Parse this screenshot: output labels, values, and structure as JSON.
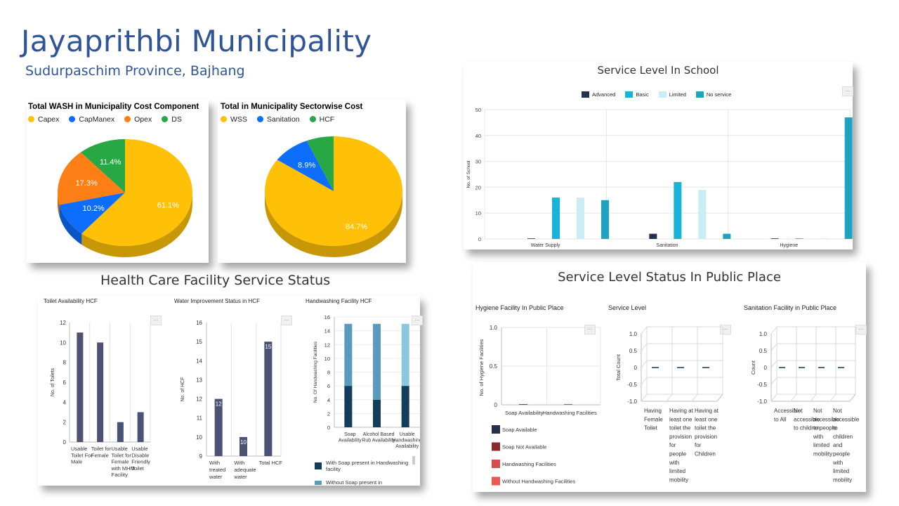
{
  "header": {
    "title": "Jayaprithbi Municipality",
    "subtitle": "Sudurpaschim Province, Bajhang"
  },
  "colors": {
    "capex": "#ffc107",
    "capmanex": "#0d6efd",
    "opex": "#fd7e14",
    "ds": "#28a745",
    "wss": "#ffc107",
    "sanitation": "#0d6efd",
    "hcf": "#28a745",
    "advanced": "#23314f",
    "basic": "#18b3d8",
    "limited": "#c9ecf5",
    "noservice": "#1fa3c2",
    "bar_dark": "#4a5275"
  },
  "pie1": {
    "title": "Total WASH in Municipality Cost Component",
    "legend": [
      "Capex",
      "CapManex",
      "Opex",
      "DS"
    ],
    "labels": [
      "61.1%",
      "10.2%",
      "17.3%",
      "11.4%"
    ],
    "chart_data": {
      "type": "pie",
      "categories": [
        "Capex",
        "CapManex",
        "Opex",
        "DS"
      ],
      "values": [
        61.1,
        10.2,
        17.3,
        11.4
      ]
    }
  },
  "pie2": {
    "title": "Total in Municipality Sectorwise Cost",
    "legend": [
      "WSS",
      "Sanitation",
      "HCF"
    ],
    "labels": [
      "84.7%",
      "8.9%"
    ],
    "chart_data": {
      "type": "pie",
      "categories": [
        "WSS",
        "Sanitation",
        "HCF"
      ],
      "values": [
        84.7,
        8.9,
        6.4
      ]
    }
  },
  "school": {
    "title": "Service Level In School",
    "legend": [
      "Advanced",
      "Basic",
      "Limited",
      "No service"
    ],
    "ylabel": "No. of School",
    "chart_data": {
      "type": "bar",
      "categories": [
        "Water Supply",
        "Sanitation",
        "Hygiene"
      ],
      "series": [
        {
          "name": "Advanced",
          "values": [
            0,
            2,
            0
          ]
        },
        {
          "name": "Basic",
          "values": [
            16,
            22,
            0
          ]
        },
        {
          "name": "Limited",
          "values": [
            16,
            19,
            0
          ]
        },
        {
          "name": "No service",
          "values": [
            15,
            2,
            47
          ]
        }
      ],
      "ylim": [
        0,
        50
      ],
      "yticks": [
        0,
        10,
        20,
        30,
        40,
        50
      ]
    }
  },
  "hcf": {
    "title": "Health Care Facility Service Status",
    "toilet": {
      "title": "Toilet Availability HCF",
      "ylabel": "No. of Toilets",
      "chart_data": {
        "type": "bar",
        "categories": [
          "Usable Toilet For Male",
          "Toilet for Female",
          "Usable Toilet for Female with MHM Facility",
          "Usable Disable Friendly Toilet"
        ],
        "values": [
          11,
          10,
          2,
          3
        ],
        "ylim": [
          0,
          12
        ],
        "yticks": [
          0,
          2,
          4,
          6,
          8,
          10,
          12
        ]
      },
      "xlabels": [
        [
          "Usable",
          "Toilet For",
          "Male"
        ],
        [
          "Toilet for",
          "Female"
        ],
        [
          "Usable",
          "Toilet for",
          "Female",
          "with MHM",
          "Facility"
        ],
        [
          "Usable",
          "Disable",
          "Friendly",
          "Toilet"
        ]
      ]
    },
    "water": {
      "title": "Water Improvement Status in HCF",
      "ylabel": "No. of HCF",
      "chart_data": {
        "type": "bar",
        "categories": [
          "With treated water",
          "With adequate water",
          "Total HCF"
        ],
        "values": [
          12,
          10,
          15
        ],
        "ylim": [
          9,
          16
        ],
        "yticks": [
          9,
          10,
          11,
          12,
          13,
          14,
          15,
          16
        ]
      },
      "xlabels": [
        [
          "With",
          "treated",
          "water"
        ],
        [
          "With",
          "adequate",
          "water"
        ],
        [
          "Total HCF"
        ]
      ],
      "value_labels": [
        "12",
        "10",
        "15"
      ]
    },
    "handwash": {
      "title": "Handwashing Facility HCF",
      "ylabel": "No. Of Handwashing Facilities",
      "chart_data": {
        "type": "bar",
        "categories": [
          "Soap Availability",
          "Alcohol Based Rub Availability",
          "Usable Handwashing Availability"
        ],
        "series": [
          {
            "name": "With Soap present in Handwashing facility",
            "values": [
              6,
              4,
              6
            ]
          },
          {
            "name": "Without Soap present in",
            "values": [
              9,
              11,
              9
            ]
          }
        ],
        "ylim": [
          0,
          16
        ],
        "yticks": [
          0,
          2,
          4,
          6,
          8,
          10,
          12,
          14,
          16
        ]
      },
      "xlabels": [
        [
          "Soap",
          "Availability"
        ],
        [
          "Alcohol Based",
          "Rub Availability"
        ],
        [
          "Usable",
          "Handwashing",
          "Availability"
        ]
      ],
      "legend": [
        [
          "With Soap present in Handwashing",
          "facility"
        ],
        [
          "Without Soap present in"
        ]
      ]
    }
  },
  "public": {
    "title": "Service Level Status In Public Place",
    "hygiene": {
      "title": "Hygiene Facility In Public Place",
      "ylabel": "No. of Hygiene Facilities",
      "chart_data": {
        "type": "bar",
        "categories": [
          "Soap Availability",
          "Handwashing Facilities"
        ],
        "values": [
          0,
          0
        ],
        "ylim": [
          0,
          1.0
        ],
        "yticks": [
          "0",
          "0.5",
          "1.0"
        ]
      },
      "legend": [
        "Soap Available",
        "Soap Not Available",
        "Handwashing Facilities",
        "Without Handwashing Facilities"
      ]
    },
    "service": {
      "title": "Service Level",
      "ylabel": "Total Count",
      "chart_data": {
        "type": "bar",
        "categories": [
          "Having Female Toilet",
          "Having at least one toilet the provision for people with limited mobility",
          "Having at least one toilet the provision for Children"
        ],
        "values": [
          0,
          0,
          0
        ],
        "ylim": [
          -1.0,
          1.0
        ],
        "yticks": [
          "1.0",
          "0.5",
          "0",
          "-0.5",
          "-1.0"
        ]
      },
      "xlabels": [
        [
          "Having",
          "Female",
          "Toilet"
        ],
        [
          "Having at",
          "least one",
          "toilet the",
          "provision",
          "for",
          "people",
          "with",
          "limited",
          "mobility"
        ],
        [
          "Having at",
          "least one",
          "toilet the",
          "provision",
          "for",
          "Children"
        ]
      ]
    },
    "sanitation": {
      "title": "Sanitation Facility in Public Place",
      "ylabel": "Count",
      "chart_data": {
        "type": "bar",
        "categories": [
          "Accessible to All",
          "Not accessible to children",
          "Not accessible to people with limited mobility",
          "Not accessible to children and people with limited mobility"
        ],
        "values": [
          0,
          0,
          0,
          0
        ],
        "ylim": [
          -1.0,
          1.0
        ],
        "yticks": [
          "1.0",
          "0.5",
          "0",
          "-0.5",
          "-1.0"
        ]
      },
      "xlabels": [
        [
          "Accessible",
          "to All"
        ],
        [
          "Not",
          "accessible",
          "to children"
        ],
        [
          "Not",
          "accessible",
          "to people",
          "with",
          "limited",
          "mobility"
        ],
        [
          "Not",
          "accessible",
          "to",
          "children",
          "and",
          "people",
          "with",
          "limited",
          "mobility"
        ]
      ]
    }
  }
}
